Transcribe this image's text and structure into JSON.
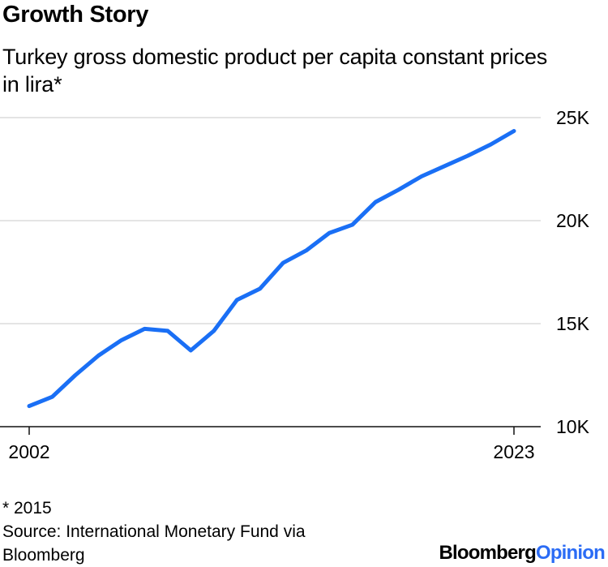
{
  "chart_data": {
    "type": "line",
    "title": "Growth Story",
    "subtitle": "Turkey gross domestic product per capita constant prices in lira*",
    "x": [
      2002,
      2003,
      2004,
      2005,
      2006,
      2007,
      2008,
      2009,
      2010,
      2011,
      2012,
      2013,
      2014,
      2015,
      2016,
      2017,
      2018,
      2019,
      2020,
      2021,
      2022,
      2023
    ],
    "series": [
      {
        "values": [
          11000,
          11450,
          12500,
          13450,
          14200,
          14750,
          14650,
          13700,
          14650,
          16150,
          16700,
          17950,
          18550,
          19400,
          19800,
          20900,
          21500,
          22150,
          22650,
          23150,
          23700,
          24350
        ],
        "color": "#1a6ff5"
      }
    ],
    "x_tick_labels": [
      "2002",
      "2023"
    ],
    "y_tick_labels": [
      "25K",
      "20K",
      "15K",
      "10K"
    ],
    "y_ticks": [
      25000,
      20000,
      15000,
      10000
    ],
    "ylim": [
      10000,
      25000
    ],
    "xlim": [
      2002,
      2023
    ],
    "y_axis_side": "right",
    "grid": true
  },
  "footnote": "* 2015",
  "source": "Source: International Monetary Fund via Bloomberg",
  "brand": {
    "part1": "Bloomberg",
    "part2": "Opinion"
  }
}
